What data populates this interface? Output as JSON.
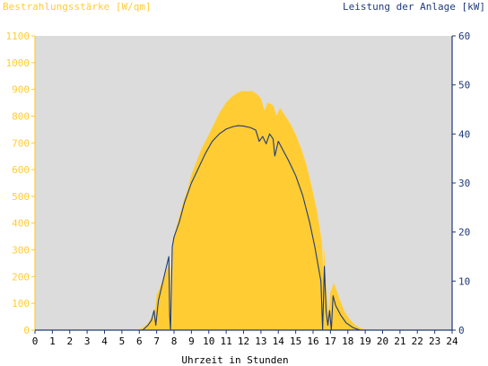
{
  "colors": {
    "irradiance": "#FFCC33",
    "irradiance_edge": "#FFD24D",
    "power": "#1F3A7A",
    "plot_bg": "#DCDCDC",
    "axis_left": "#FFCC33",
    "axis_right": "#1F3A7A",
    "axis_bottom": "#1F3A7A",
    "text_bottom": "#000000"
  },
  "chart_data": {
    "type": "area",
    "left_axis_title": "Bestrahlungsstärke [W/qm]",
    "right_axis_title": "Leistung der Anlage [kW]",
    "xlabel": "Uhrzeit in Stunden",
    "xlim": [
      0,
      24
    ],
    "ylim_left": [
      0,
      1100
    ],
    "ylim_right": [
      0,
      60
    ],
    "x_ticks": [
      "0",
      "1",
      "2",
      "3",
      "4",
      "5",
      "6",
      "7",
      "8",
      "9",
      "10",
      "11",
      "12",
      "13",
      "14",
      "15",
      "16",
      "17",
      "18",
      "19",
      "20",
      "21",
      "22",
      "23",
      "24"
    ],
    "y_ticks_left": [
      "0",
      "100",
      "200",
      "300",
      "400",
      "500",
      "600",
      "700",
      "800",
      "900",
      "1000",
      "1100"
    ],
    "y_ticks_right": [
      "0",
      "10",
      "20",
      "30",
      "40",
      "50",
      "60"
    ],
    "grid": false,
    "series": [
      {
        "name": "Bestrahlungsstärke [W/qm]",
        "axis": "left",
        "style": "area",
        "points": [
          [
            0,
            0
          ],
          [
            5.9,
            0
          ],
          [
            6.2,
            8
          ],
          [
            6.5,
            25
          ],
          [
            6.8,
            55
          ],
          [
            6.95,
            90
          ],
          [
            7.0,
            130
          ],
          [
            7.2,
            160
          ],
          [
            7.5,
            210
          ],
          [
            7.75,
            250
          ],
          [
            7.8,
            60
          ],
          [
            7.88,
            0
          ],
          [
            7.95,
            330
          ],
          [
            8.2,
            400
          ],
          [
            8.5,
            470
          ],
          [
            8.8,
            530
          ],
          [
            9.0,
            580
          ],
          [
            9.3,
            630
          ],
          [
            9.6,
            680
          ],
          [
            10.0,
            730
          ],
          [
            10.3,
            770
          ],
          [
            10.6,
            810
          ],
          [
            11.0,
            850
          ],
          [
            11.3,
            870
          ],
          [
            11.6,
            885
          ],
          [
            11.9,
            893
          ],
          [
            12.2,
            892
          ],
          [
            12.5,
            893
          ],
          [
            12.8,
            880
          ],
          [
            13.0,
            865
          ],
          [
            13.2,
            820
          ],
          [
            13.4,
            850
          ],
          [
            13.7,
            840
          ],
          [
            13.9,
            800
          ],
          [
            14.1,
            830
          ],
          [
            14.4,
            800
          ],
          [
            14.7,
            770
          ],
          [
            15.0,
            730
          ],
          [
            15.3,
            680
          ],
          [
            15.6,
            620
          ],
          [
            15.9,
            540
          ],
          [
            16.2,
            450
          ],
          [
            16.5,
            330
          ],
          [
            16.6,
            180
          ],
          [
            16.65,
            300
          ],
          [
            16.75,
            150
          ],
          [
            16.85,
            100
          ],
          [
            16.92,
            60
          ],
          [
            17.0,
            140
          ],
          [
            17.2,
            175
          ],
          [
            17.5,
            120
          ],
          [
            17.8,
            70
          ],
          [
            18.1,
            40
          ],
          [
            18.4,
            20
          ],
          [
            18.7,
            8
          ],
          [
            19.0,
            2
          ],
          [
            19.2,
            0
          ],
          [
            24,
            0
          ]
        ]
      },
      {
        "name": "Leistung der Anlage [kW]",
        "axis": "right",
        "style": "line",
        "points": [
          [
            0,
            0
          ],
          [
            6.2,
            0
          ],
          [
            6.5,
            1
          ],
          [
            6.7,
            2
          ],
          [
            6.85,
            4
          ],
          [
            6.95,
            1
          ],
          [
            7.1,
            6
          ],
          [
            7.3,
            9
          ],
          [
            7.5,
            12
          ],
          [
            7.7,
            15
          ],
          [
            7.75,
            3
          ],
          [
            7.8,
            0
          ],
          [
            7.9,
            17
          ],
          [
            8.0,
            19
          ],
          [
            8.3,
            22
          ],
          [
            8.6,
            26
          ],
          [
            9.0,
            30
          ],
          [
            9.4,
            33
          ],
          [
            9.8,
            36
          ],
          [
            10.2,
            38.5
          ],
          [
            10.6,
            40
          ],
          [
            11.0,
            41
          ],
          [
            11.4,
            41.5
          ],
          [
            11.7,
            41.7
          ],
          [
            12.0,
            41.6
          ],
          [
            12.4,
            41.3
          ],
          [
            12.7,
            40.8
          ],
          [
            12.9,
            38.5
          ],
          [
            13.1,
            39.5
          ],
          [
            13.3,
            38.0
          ],
          [
            13.5,
            40
          ],
          [
            13.7,
            39
          ],
          [
            13.8,
            35.5
          ],
          [
            14.0,
            38.5
          ],
          [
            14.3,
            36.5
          ],
          [
            14.6,
            34.5
          ],
          [
            15.0,
            31.5
          ],
          [
            15.4,
            27.5
          ],
          [
            15.8,
            22
          ],
          [
            16.1,
            17
          ],
          [
            16.3,
            13
          ],
          [
            16.45,
            10
          ],
          [
            16.55,
            0
          ],
          [
            16.65,
            13
          ],
          [
            16.75,
            4
          ],
          [
            16.85,
            1
          ],
          [
            16.95,
            4
          ],
          [
            17.05,
            0
          ],
          [
            17.15,
            7
          ],
          [
            17.3,
            5
          ],
          [
            17.6,
            3
          ],
          [
            17.9,
            1.5
          ],
          [
            18.3,
            0.5
          ],
          [
            18.7,
            0
          ],
          [
            24,
            0
          ]
        ]
      }
    ]
  }
}
